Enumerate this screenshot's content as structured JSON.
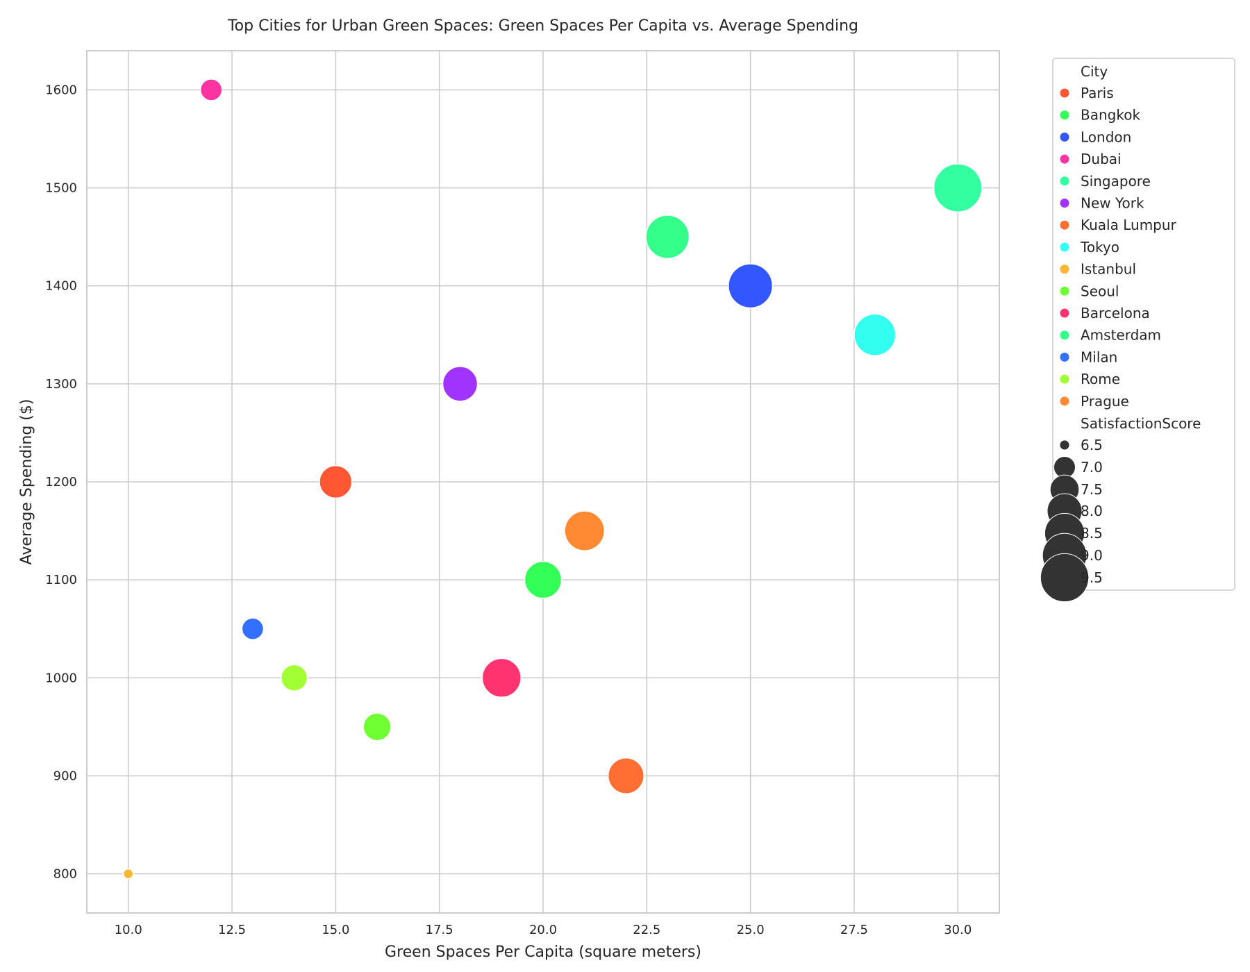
{
  "chart_data": {
    "type": "scatter",
    "title": "Top Cities for Urban Green Spaces: Green Spaces Per Capita vs. Average Spending",
    "xlabel": "Green Spaces Per Capita (square meters)",
    "ylabel": "Average Spending ($)",
    "xlim": [
      9.0,
      31.0
    ],
    "ylim": [
      760,
      1640
    ],
    "xticks": [
      10.0,
      12.5,
      15.0,
      17.5,
      20.0,
      22.5,
      25.0,
      27.5,
      30.0
    ],
    "xtick_labels": [
      "10.0",
      "12.5",
      "15.0",
      "17.5",
      "20.0",
      "22.5",
      "25.0",
      "27.5",
      "30.0"
    ],
    "yticks": [
      800,
      900,
      1000,
      1100,
      1200,
      1300,
      1400,
      1500,
      1600
    ],
    "ytick_labels": [
      "800",
      "900",
      "1000",
      "1100",
      "1200",
      "1300",
      "1400",
      "1500",
      "1600"
    ],
    "grid": true,
    "legend_position": "outside-right",
    "legend_hue_title": "City",
    "legend_size_title": "SatisfactionScore",
    "size_legend_levels": [
      6.5,
      7.0,
      7.5,
      8.0,
      8.5,
      9.0,
      9.5
    ],
    "size_legend_labels": [
      "6.5",
      "7.0",
      "7.5",
      "8.0",
      "8.5",
      "9.0",
      "9.5"
    ],
    "size_legend_color": "#333333",
    "points": [
      {
        "city": "Paris",
        "x": 15,
        "y": 1200,
        "satisfaction": 7.8,
        "color": "#ff5733"
      },
      {
        "city": "Bangkok",
        "x": 20,
        "y": 1100,
        "satisfaction": 8.2,
        "color": "#33ff57"
      },
      {
        "city": "London",
        "x": 25,
        "y": 1400,
        "satisfaction": 9.0,
        "color": "#3357ff"
      },
      {
        "city": "Dubai",
        "x": 12,
        "y": 1600,
        "satisfaction": 7.0,
        "color": "#ff33a1"
      },
      {
        "city": "Singapore",
        "x": 30,
        "y": 1500,
        "satisfaction": 9.5,
        "color": "#33ffa1"
      },
      {
        "city": "New York",
        "x": 18,
        "y": 1300,
        "satisfaction": 8.0,
        "color": "#a133ff"
      },
      {
        "city": "Kuala Lumpur",
        "x": 22,
        "y": 900,
        "satisfaction": 8.1,
        "color": "#ff6f33"
      },
      {
        "city": "Tokyo",
        "x": 28,
        "y": 1350,
        "satisfaction": 8.7,
        "color": "#33fff0"
      },
      {
        "city": "Istanbul",
        "x": 10,
        "y": 800,
        "satisfaction": 6.5,
        "color": "#ffb733"
      },
      {
        "city": "Seoul",
        "x": 16,
        "y": 950,
        "satisfaction": 7.4,
        "color": "#6fff33"
      },
      {
        "city": "Barcelona",
        "x": 19,
        "y": 1000,
        "satisfaction": 8.4,
        "color": "#ff3370"
      },
      {
        "city": "Amsterdam",
        "x": 23,
        "y": 1450,
        "satisfaction": 8.9,
        "color": "#33ff8a"
      },
      {
        "city": "Milan",
        "x": 13,
        "y": 1050,
        "satisfaction": 7.0,
        "color": "#3370ff"
      },
      {
        "city": "Rome",
        "x": 14,
        "y": 1000,
        "satisfaction": 7.3,
        "color": "#a1ff33"
      },
      {
        "city": "Prague",
        "x": 21,
        "y": 1150,
        "satisfaction": 8.5,
        "color": "#ff8a33"
      }
    ]
  }
}
